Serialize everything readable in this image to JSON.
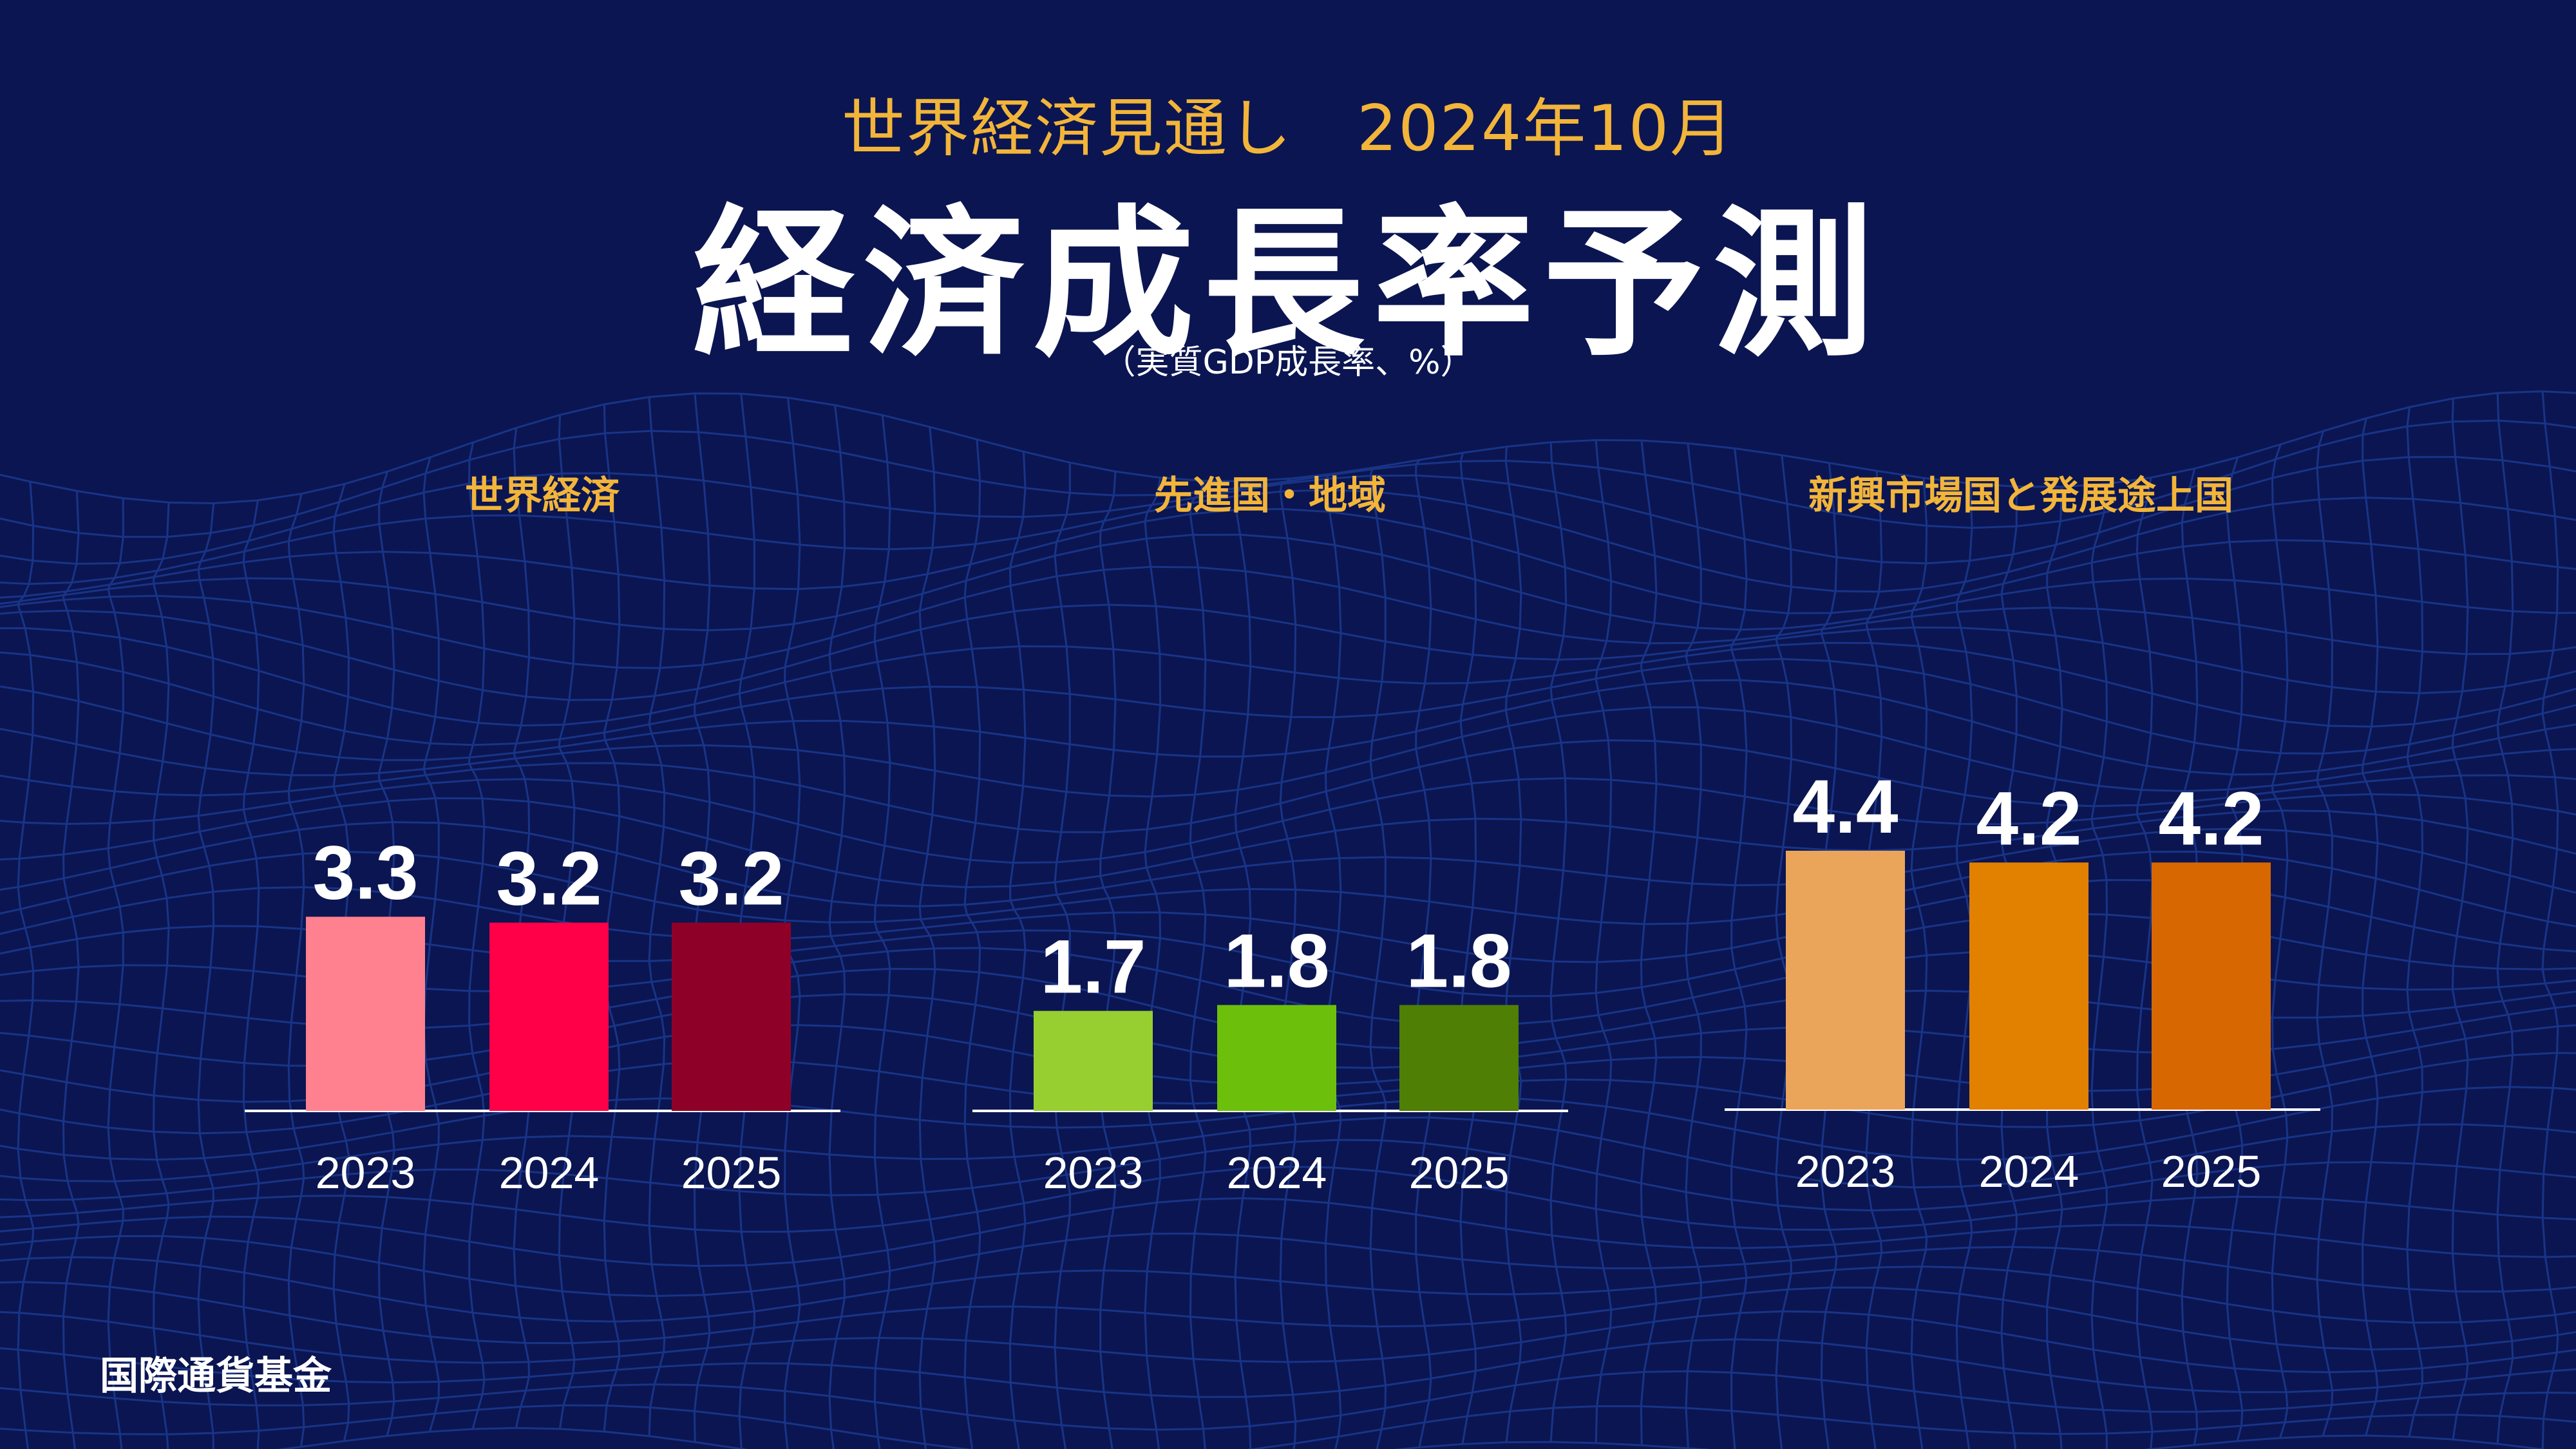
{
  "header": {
    "subtitle": "世界経済見通し　2024年10月",
    "title": "経済成長率予測",
    "unit_note": "（実質GDP成長率、%）"
  },
  "footer": {
    "source": "国際通貨基金"
  },
  "chart_data": [
    {
      "type": "bar",
      "title": "世界経済",
      "categories": [
        "2023",
        "2024",
        "2025"
      ],
      "values": [
        3.3,
        3.2,
        3.2
      ],
      "value_labels": [
        "3.3",
        "3.2",
        "3.2"
      ],
      "colors": [
        "#ff808f",
        "#ff0048",
        "#8f0028"
      ],
      "ylim": [
        0,
        4.4
      ]
    },
    {
      "type": "bar",
      "title": "先進国・地域",
      "categories": [
        "2023",
        "2024",
        "2025"
      ],
      "values": [
        1.7,
        1.8,
        1.8
      ],
      "value_labels": [
        "1.7",
        "1.8",
        "1.8"
      ],
      "colors": [
        "#96cf2f",
        "#6cbf0a",
        "#4f7f05"
      ],
      "ylim": [
        0,
        4.4
      ]
    },
    {
      "type": "bar",
      "title": "新興市場国と発展途上国",
      "categories": [
        "2023",
        "2024",
        "2025"
      ],
      "values": [
        4.4,
        4.2,
        4.2
      ],
      "value_labels": [
        "4.4",
        "4.2",
        "4.2"
      ],
      "colors": [
        "#eaa55a",
        "#e28000",
        "#d76700"
      ],
      "ylim": [
        0,
        4.4
      ]
    }
  ],
  "style": {
    "background": "#0b1551",
    "grid_line": "#1d3f9a",
    "title_accent": "#f2b53a",
    "text": "#ffffff"
  }
}
